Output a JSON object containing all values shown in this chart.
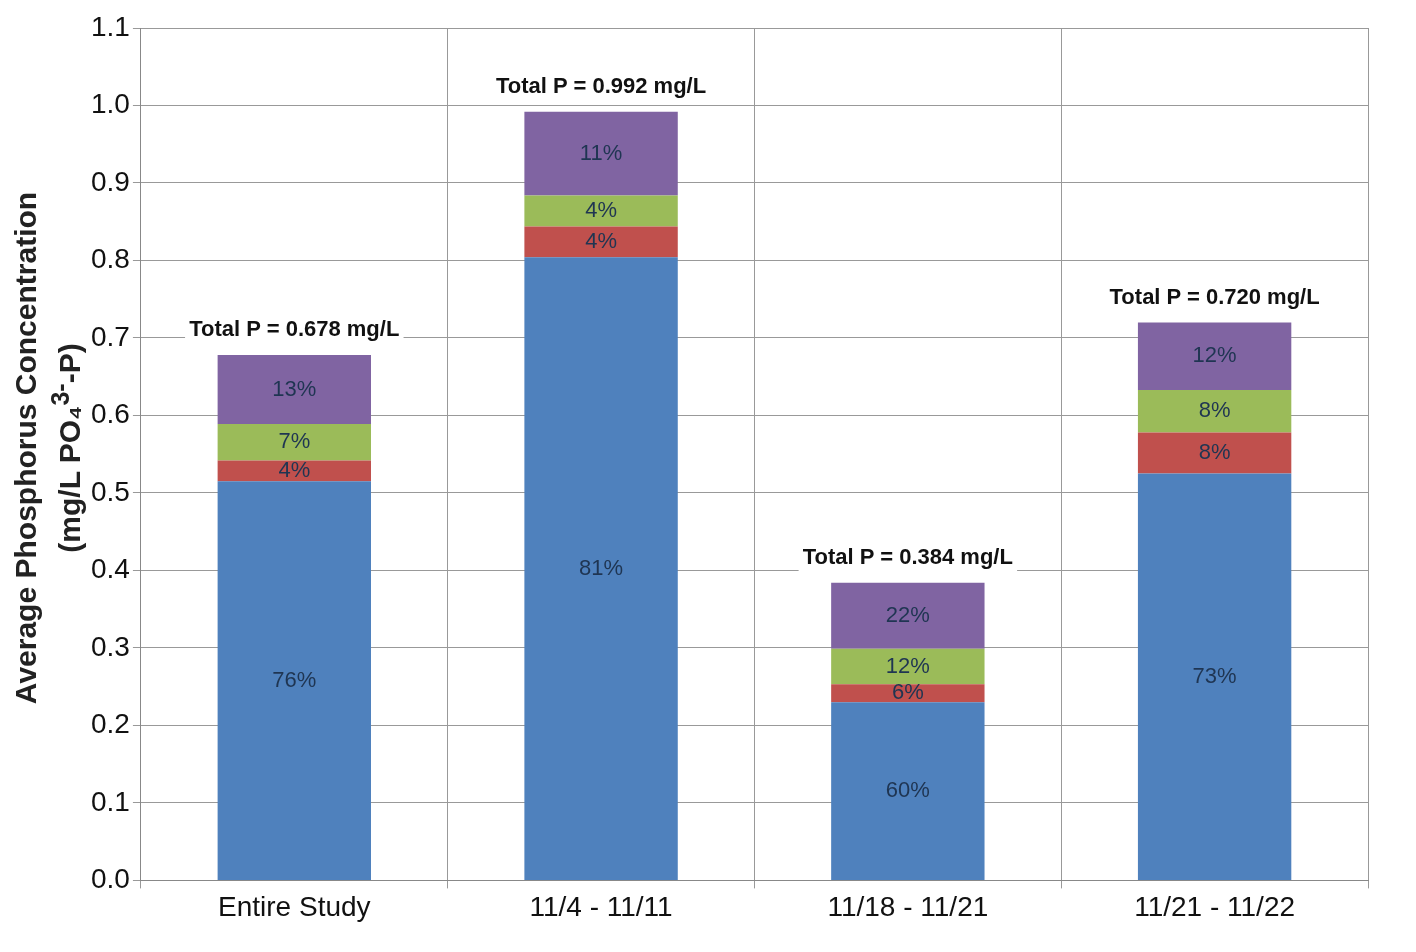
{
  "chart_data": {
    "type": "bar",
    "stacked": true,
    "ylabel": "Average Phosphorus Concentration (mg/L PO₄$^{3-}$-P)",
    "categories": [
      "Entire Study",
      "11/4 - 11/11",
      "11/18 - 11/21",
      "11/21 - 11/22"
    ],
    "series": [
      {
        "color": "#4f81bd",
        "values": [
          0.515,
          0.804,
          0.23,
          0.525
        ]
      },
      {
        "color": "#c0504d",
        "values": [
          0.027,
          0.04,
          0.023,
          0.053
        ]
      },
      {
        "color": "#9bbb59",
        "values": [
          0.047,
          0.04,
          0.046,
          0.055
        ]
      },
      {
        "color": "#8064a2",
        "values": [
          0.089,
          0.108,
          0.085,
          0.087
        ]
      }
    ],
    "annotations": [
      "76%",
      "4%",
      "7%",
      "13%",
      "81%",
      "4%",
      "4%",
      "11%",
      "60%",
      "6%",
      "12%",
      "22%",
      "73%",
      "8%",
      "8%",
      "12%"
    ],
    "totals": [
      "Total P = 0.678 mg/L",
      "Total P = 0.992 mg/L",
      "Total P = 0.384 mg/L",
      "Total P = 0.720 mg/L"
    ],
    "ylim": [
      0,
      1.1
    ],
    "yticks": [
      {
        "value": 0,
        "label": "0.0"
      },
      0.1,
      0.2,
      0.3,
      0.4,
      0.5,
      0.6,
      0.7,
      0.8,
      0.9,
      {
        "value": 1,
        "label": "1.0"
      },
      1.1
    ],
    "grid": true,
    "legend": false
  }
}
